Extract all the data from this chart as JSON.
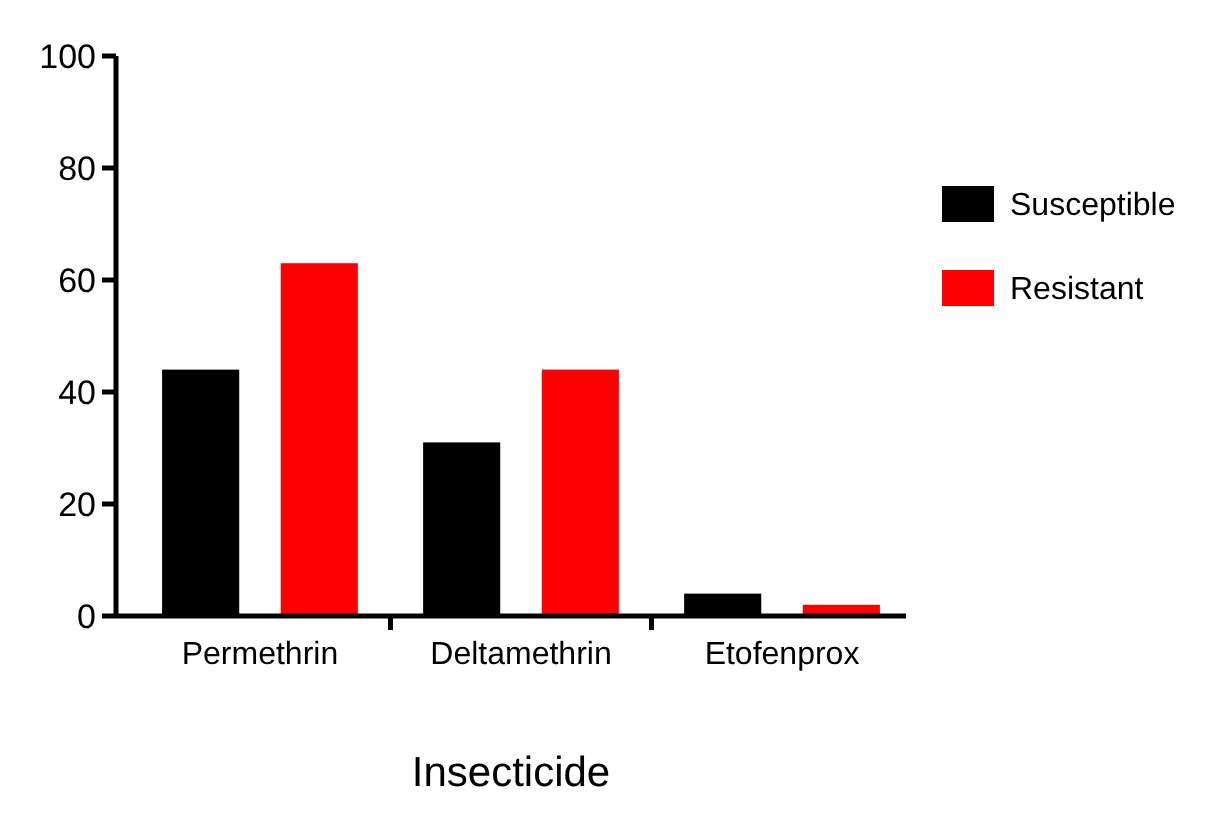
{
  "chart_data": {
    "type": "bar",
    "xlabel": "Insecticide",
    "categories": [
      "Permethrin",
      "Deltamethrin",
      "Etofenprox"
    ],
    "series": [
      {
        "name": "Susceptible",
        "color": "#000000",
        "values": [
          44,
          31,
          4
        ]
      },
      {
        "name": "Resistant",
        "color": "#ff0000",
        "values": [
          63,
          44,
          2
        ]
      }
    ],
    "ylim": [
      0,
      100
    ],
    "yticks": [
      0,
      20,
      40,
      60,
      80,
      100
    ],
    "legend": "right",
    "grid": false
  }
}
